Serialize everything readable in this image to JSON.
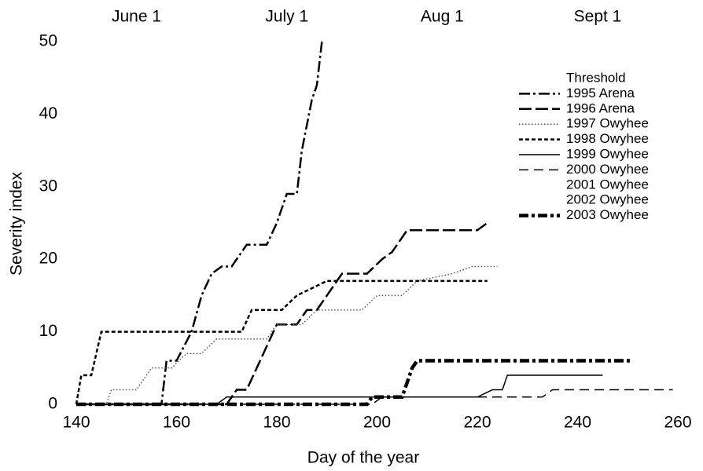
{
  "chart_data": {
    "type": "line",
    "xlabel": "Day of the year",
    "ylabel": "Severity index",
    "xlim": [
      140,
      260
    ],
    "xticks": [
      140,
      160,
      180,
      200,
      220,
      240,
      260
    ],
    "x2ticks": [
      {
        "value": 152,
        "label": "June 1"
      },
      {
        "value": 182,
        "label": "July 1"
      },
      {
        "value": 213,
        "label": "Aug 1"
      },
      {
        "value": 244,
        "label": "Sept 1"
      }
    ],
    "ylim": [
      0,
      50
    ],
    "yticks": [
      0,
      10,
      20,
      30,
      40,
      50
    ],
    "grid": false,
    "legend": "upper right",
    "series": [
      {
        "name": "Threshold",
        "color": "#ffffff",
        "dash": "none",
        "width": 2,
        "x": [],
        "values": []
      },
      {
        "name": "1995 Arena",
        "color": "#000000",
        "dash": "14,4,3,4",
        "width": 2.5,
        "x": [
          140,
          157,
          158,
          160,
          163,
          165,
          167,
          169,
          171,
          174,
          178,
          180,
          182,
          184,
          185,
          187,
          188,
          189
        ],
        "values": [
          0,
          0,
          6,
          6,
          10,
          15,
          18,
          19,
          19,
          22,
          22,
          25,
          29,
          29,
          35,
          42,
          44,
          50
        ]
      },
      {
        "name": "1996 Arena",
        "color": "#000000",
        "dash": "16,5",
        "width": 2.5,
        "x": [
          140,
          170,
          172,
          174,
          176,
          178,
          180,
          184,
          186,
          188,
          190,
          193,
          198,
          201,
          203,
          206,
          220,
          222
        ],
        "values": [
          0,
          0,
          2,
          2,
          5,
          8,
          11,
          11,
          13,
          13,
          15,
          18,
          18,
          20,
          21,
          24,
          24,
          25
        ]
      },
      {
        "name": "1997 Owyhee",
        "color": "#555555",
        "dash": "1.5,2.5",
        "width": 1.5,
        "x": [
          140,
          146,
          147,
          152,
          155,
          159,
          162,
          165,
          168,
          178,
          180,
          185,
          188,
          197,
          200,
          205,
          208,
          215,
          219,
          224
        ],
        "values": [
          0,
          0,
          2,
          2,
          5,
          5,
          7,
          7,
          9,
          9,
          11,
          11,
          13,
          13,
          15,
          15,
          17,
          18,
          19,
          19
        ]
      },
      {
        "name": "1998 Owyhee",
        "color": "#000000",
        "dash": "5,3",
        "width": 2.5,
        "x": [
          140,
          141,
          143,
          145,
          173,
          175,
          181,
          184,
          190,
          222
        ],
        "values": [
          0,
          4,
          4,
          10,
          10,
          13,
          13,
          15,
          17,
          17
        ]
      },
      {
        "name": "1999 Owyhee",
        "color": "#000000",
        "dash": "none",
        "width": 1.5,
        "x": [
          140,
          168,
          170,
          220,
          223,
          225,
          226,
          245
        ],
        "values": [
          0,
          0,
          1,
          1,
          2,
          2,
          4,
          4
        ]
      },
      {
        "name": "2000 Owyhee",
        "color": "#000000",
        "dash": "12,7",
        "width": 1.5,
        "x": [
          140,
          199,
          201,
          233,
          235,
          259
        ],
        "values": [
          0,
          0,
          1,
          1,
          2,
          2
        ]
      },
      {
        "name": "2001 Owyhee",
        "color": "#ffffff",
        "dash": "none",
        "width": 2,
        "x": [],
        "values": []
      },
      {
        "name": "2002 Owyhee",
        "color": "#ffffff",
        "dash": "none",
        "width": 2,
        "x": [],
        "values": []
      },
      {
        "name": "2003 Owyhee",
        "color": "#000000",
        "dash": "12,4,4,4",
        "width": 4.5,
        "x": [
          140,
          198,
          199,
          205,
          207,
          208,
          251
        ],
        "values": [
          0,
          0,
          1,
          1,
          5,
          6,
          6
        ]
      }
    ]
  }
}
